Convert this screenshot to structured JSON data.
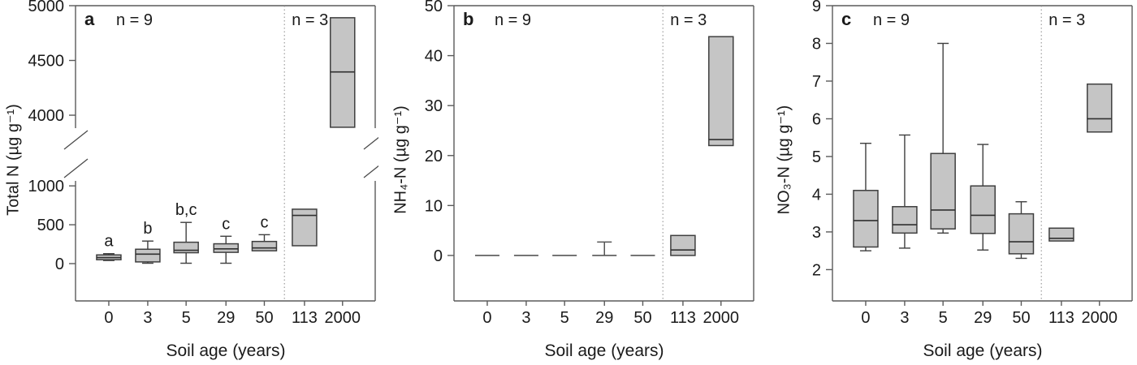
{
  "figure": {
    "xlabel": "Soil age (years)",
    "categories": [
      "0",
      "3",
      "5",
      "29",
      "50",
      "113",
      "2000"
    ],
    "separator_after_index": 4,
    "colors": {
      "box_fill": "#c5c5c5",
      "box_stroke": "#3f3f3f",
      "median": "#303030",
      "axis": "#5a5a5a",
      "separator": "#8a8a8a",
      "text": "#1a1a1a"
    }
  },
  "chart_data": [
    {
      "type": "box",
      "panel_label": "a",
      "n_left": "n = 9",
      "n_right": "n = 3",
      "ylabel": "Total N (µg g⁻¹)",
      "broken_axis": true,
      "axis_segments": [
        {
          "ylim": [
            -480,
            1440
          ],
          "ticks": [
            0,
            500,
            1000
          ]
        },
        {
          "ylim": [
            3667,
            5000
          ],
          "ticks": [
            4000,
            4500,
            5000
          ]
        }
      ],
      "boxes": [
        {
          "category": "0",
          "low": 40,
          "q1": 50,
          "median": 78,
          "q3": 112,
          "high": 128,
          "sig": "a"
        },
        {
          "category": "3",
          "low": 5,
          "q1": 22,
          "median": 122,
          "q3": 185,
          "high": 290,
          "sig": "b"
        },
        {
          "category": "5",
          "low": 5,
          "q1": 140,
          "median": 172,
          "q3": 275,
          "high": 530,
          "sig": "b,c"
        },
        {
          "category": "29",
          "low": 5,
          "q1": 145,
          "median": 190,
          "q3": 255,
          "high": 352,
          "sig": "c"
        },
        {
          "category": "50",
          "q1": 165,
          "median": 202,
          "q3": 285,
          "high": 372,
          "sig": "c"
        },
        {
          "category": "113",
          "q1": 230,
          "median": 620,
          "q3": 700
        },
        {
          "category": "2000",
          "q1": 3890,
          "median": 4395,
          "q3": 4890
        }
      ]
    },
    {
      "type": "box",
      "panel_label": "b",
      "n_left": "n = 9",
      "n_right": "n = 3",
      "ylabel": "NH₄-N (µg g⁻¹)",
      "broken_axis": false,
      "axis_segments": [
        {
          "ylim": [
            -9.1,
            50
          ],
          "ticks": [
            0,
            10,
            20,
            30,
            40,
            50
          ]
        }
      ],
      "boxes": [
        {
          "category": "0",
          "collapsed": true,
          "value": 0
        },
        {
          "category": "3",
          "collapsed": true,
          "value": 0
        },
        {
          "category": "5",
          "collapsed": true,
          "value": 0
        },
        {
          "category": "29",
          "collapsed": true,
          "value": 0,
          "high": 2.7
        },
        {
          "category": "50",
          "collapsed": true,
          "value": 0
        },
        {
          "category": "113",
          "q1": 0,
          "median": 1.1,
          "q3": 4.0
        },
        {
          "category": "2000",
          "q1": 22,
          "median": 23.2,
          "q3": 43.8
        }
      ]
    },
    {
      "type": "box",
      "panel_label": "c",
      "n_left": "n = 9",
      "n_right": "n = 3",
      "ylabel": "NO₃-N (µg g⁻¹)",
      "broken_axis": false,
      "axis_segments": [
        {
          "ylim": [
            1.17,
            9
          ],
          "ticks": [
            2,
            3,
            4,
            5,
            6,
            7,
            8,
            9
          ]
        }
      ],
      "boxes": [
        {
          "category": "0",
          "low": 2.5,
          "q1": 2.6,
          "median": 3.3,
          "q3": 4.1,
          "high": 5.35
        },
        {
          "category": "3",
          "low": 2.57,
          "q1": 2.97,
          "median": 3.19,
          "q3": 3.67,
          "high": 5.57
        },
        {
          "category": "5",
          "low": 2.97,
          "q1": 3.08,
          "median": 3.58,
          "q3": 5.08,
          "high": 8.0
        },
        {
          "category": "29",
          "low": 2.52,
          "q1": 2.96,
          "median": 3.44,
          "q3": 4.22,
          "high": 5.32
        },
        {
          "category": "50",
          "low": 2.3,
          "q1": 2.42,
          "median": 2.74,
          "q3": 3.48,
          "high": 3.8
        },
        {
          "category": "113",
          "q1": 2.76,
          "median": 2.83,
          "q3": 3.1
        },
        {
          "category": "2000",
          "q1": 5.65,
          "median": 6.0,
          "q3": 6.92
        }
      ]
    }
  ]
}
